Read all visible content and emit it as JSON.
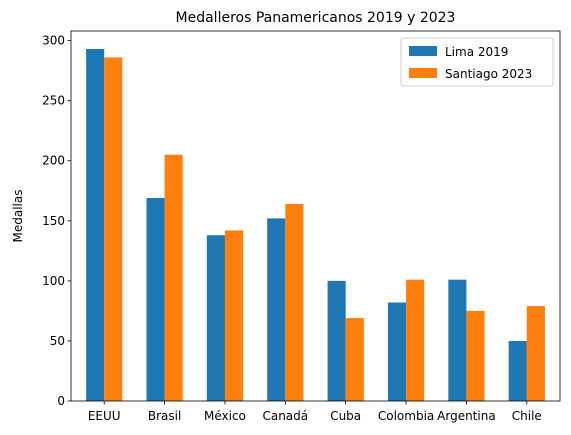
{
  "chart_data": {
    "type": "bar",
    "title": "Medalleros Panamericanos 2019 y 2023",
    "xlabel": "",
    "ylabel": "Medallas",
    "categories": [
      "EEUU",
      "Brasil",
      "México",
      "Canadá",
      "Cuba",
      "Colombia",
      "Argentina",
      "Chile"
    ],
    "series": [
      {
        "name": "Lima 2019",
        "color": "#1f77b4",
        "values": [
          293,
          169,
          138,
          152,
          100,
          82,
          101,
          50
        ]
      },
      {
        "name": "Santiago 2023",
        "color": "#ff7f0e",
        "values": [
          286,
          205,
          142,
          164,
          69,
          101,
          75,
          79
        ]
      }
    ],
    "ylim": [
      0,
      308
    ],
    "yticks": [
      0,
      50,
      100,
      150,
      200,
      250,
      300
    ],
    "grid": false,
    "legend_position": "top-right"
  }
}
